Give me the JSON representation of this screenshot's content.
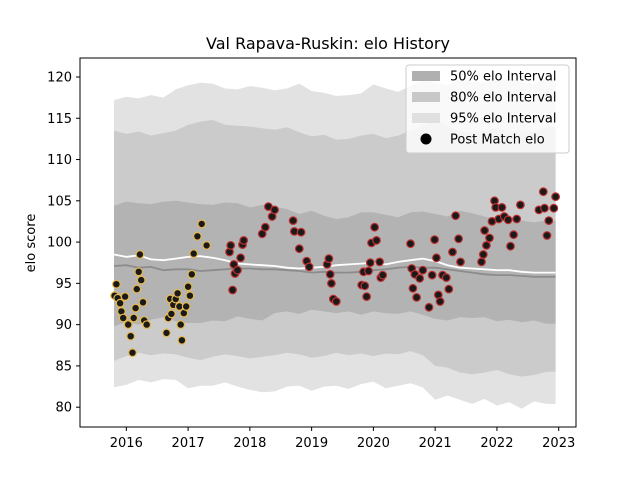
{
  "chart_data": {
    "type": "scatter",
    "title": "Val Rapava-Ruskin: elo History",
    "xlabel": "",
    "ylabel": "elo score",
    "xlim": [
      2015.25,
      2023.28
    ],
    "ylim": [
      77.6,
      122.3
    ],
    "x_ticks": [
      2016,
      2017,
      2018,
      2019,
      2020,
      2021,
      2022,
      2023
    ],
    "y_ticks": [
      80,
      85,
      90,
      95,
      100,
      105,
      110,
      115,
      120
    ],
    "grid": false,
    "legend_position": "top-right",
    "legend": [
      {
        "label": "50% elo Interval",
        "kind": "band",
        "color": "#b0b0b0"
      },
      {
        "label": "80% elo Interval",
        "kind": "band",
        "color": "#c8c8c8"
      },
      {
        "label": "95% elo Interval",
        "kind": "band",
        "color": "#e0e0e0"
      },
      {
        "label": "Post Match elo",
        "kind": "marker",
        "color": "#000000"
      }
    ],
    "colors": {
      "band50": "#b3b3b3",
      "band80": "#cbcbcb",
      "band95": "#e2e2e2",
      "median_line": "#8c8c8c",
      "mean_line": "#ffffff",
      "point_fill": "#1a1a1a",
      "edge_early": "#e8b84a",
      "edge_late": "#c03030"
    },
    "x_grid": [
      2015.8,
      2016.0,
      2016.2,
      2016.4,
      2016.6,
      2016.8,
      2017.0,
      2017.2,
      2017.4,
      2017.6,
      2017.8,
      2018.0,
      2018.2,
      2018.4,
      2018.6,
      2018.8,
      2019.0,
      2019.2,
      2019.4,
      2019.6,
      2019.8,
      2020.0,
      2020.2,
      2020.4,
      2020.6,
      2020.8,
      2021.0,
      2021.2,
      2021.4,
      2021.6,
      2021.8,
      2022.0,
      2022.2,
      2022.4,
      2022.6,
      2022.8,
      2022.95
    ],
    "band95": {
      "upper": [
        117.2,
        117.6,
        117.4,
        117.8,
        117.5,
        118.5,
        119.0,
        119.3,
        119.2,
        118.6,
        118.5,
        118.9,
        118.7,
        118.4,
        118.6,
        119.2,
        118.3,
        118.1,
        117.7,
        117.8,
        118.0,
        119.1,
        118.6,
        118.2,
        118.9,
        119.6,
        119.3,
        119.0,
        119.7,
        119.4,
        119.3,
        119.6,
        119.8,
        119.4,
        119.1,
        119.9,
        119.8
      ],
      "lower": [
        82.4,
        82.7,
        83.3,
        83.0,
        83.4,
        83.3,
        82.3,
        82.6,
        82.6,
        83.0,
        82.5,
        82.1,
        81.8,
        81.9,
        82.5,
        82.6,
        82.0,
        82.5,
        82.6,
        82.2,
        82.8,
        83.1,
        82.3,
        82.6,
        82.9,
        82.4,
        80.9,
        81.4,
        80.9,
        80.4,
        81.0,
        80.2,
        80.6,
        79.8,
        80.7,
        80.4,
        80.4
      ]
    },
    "band80": {
      "upper": [
        113.5,
        113.1,
        113.4,
        112.9,
        113.2,
        113.5,
        114.2,
        114.6,
        114.8,
        114.2,
        114.1,
        114.0,
        113.8,
        113.6,
        113.9,
        113.3,
        112.8,
        113.0,
        112.4,
        112.5,
        112.9,
        113.1,
        112.6,
        112.9,
        113.5,
        114.0,
        114.8,
        114.0,
        113.4,
        113.2,
        113.5,
        113.9,
        113.3,
        113.6,
        113.3,
        113.9,
        113.9
      ],
      "lower": [
        85.6,
        86.2,
        86.6,
        86.3,
        86.5,
        86.4,
        86.0,
        85.7,
        86.1,
        86.4,
        86.2,
        85.9,
        86.1,
        86.3,
        86.6,
        86.4,
        86.0,
        86.2,
        86.6,
        86.3,
        86.5,
        86.2,
        86.5,
        86.4,
        86.8,
        86.3,
        85.0,
        84.8,
        84.2,
        84.0,
        84.2,
        84.5,
        84.0,
        83.7,
        83.9,
        84.3,
        84.3
      ]
    },
    "band50": {
      "upper": [
        104.4,
        104.9,
        104.7,
        104.6,
        104.9,
        105.0,
        104.8,
        104.6,
        104.5,
        104.8,
        104.7,
        104.2,
        104.5,
        104.3,
        104.0,
        103.4,
        103.8,
        103.2,
        102.8,
        103.0,
        103.6,
        103.6,
        103.3,
        103.0,
        103.6,
        103.7,
        103.4,
        103.1,
        103.8,
        103.5,
        103.1,
        102.8,
        103.0,
        102.6,
        102.4,
        102.6,
        102.6
      ],
      "lower": [
        89.8,
        90.3,
        90.0,
        90.6,
        90.9,
        90.4,
        90.2,
        90.2,
        90.5,
        90.4,
        91.0,
        90.7,
        90.5,
        91.4,
        91.6,
        91.3,
        91.8,
        91.6,
        91.4,
        91.6,
        91.2,
        91.6,
        91.4,
        91.3,
        91.6,
        91.2,
        90.7,
        90.5,
        90.9,
        90.8,
        90.9,
        90.4,
        90.6,
        90.3,
        90.5,
        90.1,
        90.1
      ]
    },
    "median_line": [
      97.1,
      97.2,
      96.9,
      97.0,
      96.6,
      96.7,
      96.7,
      96.5,
      96.6,
      96.7,
      96.8,
      96.8,
      96.7,
      96.7,
      96.6,
      96.5,
      96.3,
      96.4,
      96.3,
      96.3,
      96.4,
      96.6,
      96.7,
      96.9,
      97.0,
      96.9,
      96.9,
      96.7,
      96.5,
      96.3,
      96.1,
      96.0,
      96.0,
      95.9,
      95.8,
      95.8,
      95.8
    ],
    "mean_line": [
      98.5,
      98.2,
      98.4,
      97.9,
      97.8,
      98.0,
      98.2,
      98.3,
      98.1,
      97.8,
      97.4,
      97.3,
      97.2,
      97.1,
      96.9,
      96.8,
      96.9,
      97.0,
      97.2,
      97.3,
      97.4,
      97.5,
      97.3,
      97.6,
      97.8,
      98.0,
      97.7,
      97.2,
      96.9,
      96.8,
      96.7,
      96.6,
      96.6,
      96.4,
      96.3,
      96.3,
      96.3
    ],
    "series": [
      {
        "name": "Post Match elo",
        "edge": "early",
        "points": [
          [
            2015.81,
            93.5
          ],
          [
            2015.84,
            94.9
          ],
          [
            2015.86,
            93.2
          ],
          [
            2015.9,
            92.6
          ],
          [
            2015.92,
            91.6
          ],
          [
            2015.95,
            90.8
          ],
          [
            2015.98,
            93.4
          ],
          [
            2016.03,
            90.0
          ],
          [
            2016.07,
            88.6
          ],
          [
            2016.1,
            86.6
          ],
          [
            2016.12,
            90.8
          ],
          [
            2016.15,
            92.0
          ],
          [
            2016.17,
            94.3
          ],
          [
            2016.2,
            96.4
          ],
          [
            2016.22,
            98.5
          ],
          [
            2016.24,
            95.4
          ],
          [
            2016.27,
            92.7
          ],
          [
            2016.29,
            90.5
          ],
          [
            2016.33,
            90.0
          ],
          [
            2016.65,
            89.0
          ],
          [
            2016.68,
            90.8
          ],
          [
            2016.71,
            93.1
          ],
          [
            2016.73,
            91.3
          ],
          [
            2016.76,
            92.4
          ],
          [
            2016.8,
            93.1
          ],
          [
            2016.83,
            93.8
          ],
          [
            2016.86,
            92.2
          ],
          [
            2016.88,
            90.0
          ],
          [
            2016.9,
            88.1
          ],
          [
            2016.93,
            91.4
          ],
          [
            2016.97,
            92.2
          ],
          [
            2017.0,
            94.6
          ],
          [
            2017.03,
            93.5
          ],
          [
            2017.06,
            96.1
          ],
          [
            2017.09,
            98.6
          ],
          [
            2017.15,
            100.7
          ],
          [
            2017.22,
            102.2
          ],
          [
            2017.3,
            99.6
          ]
        ]
      },
      {
        "name": "Post Match elo",
        "edge": "late",
        "points": [
          [
            2017.67,
            98.8
          ],
          [
            2017.69,
            99.6
          ],
          [
            2017.72,
            94.2
          ],
          [
            2017.74,
            97.3
          ],
          [
            2017.76,
            96.2
          ],
          [
            2017.8,
            96.6
          ],
          [
            2017.85,
            98.1
          ],
          [
            2017.88,
            99.7
          ],
          [
            2017.9,
            100.2
          ],
          [
            2018.2,
            101.0
          ],
          [
            2018.25,
            101.8
          ],
          [
            2018.3,
            104.3
          ],
          [
            2018.36,
            103.1
          ],
          [
            2018.4,
            103.9
          ],
          [
            2018.7,
            102.6
          ],
          [
            2018.72,
            101.3
          ],
          [
            2018.8,
            99.2
          ],
          [
            2018.83,
            101.2
          ],
          [
            2018.92,
            97.7
          ],
          [
            2018.96,
            97.0
          ],
          [
            2019.25,
            97.3
          ],
          [
            2019.28,
            98.0
          ],
          [
            2019.3,
            96.1
          ],
          [
            2019.32,
            95.0
          ],
          [
            2019.35,
            93.1
          ],
          [
            2019.4,
            92.8
          ],
          [
            2019.81,
            94.8
          ],
          [
            2019.84,
            96.4
          ],
          [
            2019.86,
            94.7
          ],
          [
            2019.89,
            93.4
          ],
          [
            2019.92,
            96.5
          ],
          [
            2019.95,
            97.5
          ],
          [
            2019.97,
            99.9
          ],
          [
            2020.02,
            101.8
          ],
          [
            2020.05,
            100.2
          ],
          [
            2020.1,
            97.6
          ],
          [
            2020.12,
            95.7
          ],
          [
            2020.15,
            96.0
          ],
          [
            2020.6,
            99.8
          ],
          [
            2020.62,
            96.8
          ],
          [
            2020.64,
            94.4
          ],
          [
            2020.67,
            96.1
          ],
          [
            2020.7,
            93.3
          ],
          [
            2020.75,
            95.6
          ],
          [
            2020.8,
            96.6
          ],
          [
            2020.9,
            92.1
          ],
          [
            2020.95,
            96.0
          ],
          [
            2020.99,
            100.3
          ],
          [
            2021.02,
            98.1
          ],
          [
            2021.05,
            93.6
          ],
          [
            2021.08,
            92.8
          ],
          [
            2021.12,
            96.0
          ],
          [
            2021.18,
            95.7
          ],
          [
            2021.22,
            94.3
          ],
          [
            2021.28,
            98.8
          ],
          [
            2021.33,
            103.2
          ],
          [
            2021.38,
            100.4
          ],
          [
            2021.41,
            97.6
          ],
          [
            2021.75,
            97.6
          ],
          [
            2021.78,
            98.5
          ],
          [
            2021.8,
            101.4
          ],
          [
            2021.83,
            99.6
          ],
          [
            2021.88,
            100.5
          ],
          [
            2021.92,
            102.5
          ],
          [
            2021.96,
            105.0
          ],
          [
            2021.98,
            104.2
          ],
          [
            2022.03,
            102.8
          ],
          [
            2022.08,
            104.2
          ],
          [
            2022.12,
            103.1
          ],
          [
            2022.18,
            102.7
          ],
          [
            2022.22,
            99.5
          ],
          [
            2022.27,
            100.9
          ],
          [
            2022.32,
            102.8
          ],
          [
            2022.38,
            104.5
          ],
          [
            2022.68,
            103.9
          ],
          [
            2022.75,
            106.1
          ],
          [
            2022.77,
            104.1
          ],
          [
            2022.81,
            100.8
          ],
          [
            2022.84,
            102.6
          ],
          [
            2022.92,
            104.1
          ],
          [
            2022.95,
            105.5
          ]
        ]
      }
    ]
  }
}
